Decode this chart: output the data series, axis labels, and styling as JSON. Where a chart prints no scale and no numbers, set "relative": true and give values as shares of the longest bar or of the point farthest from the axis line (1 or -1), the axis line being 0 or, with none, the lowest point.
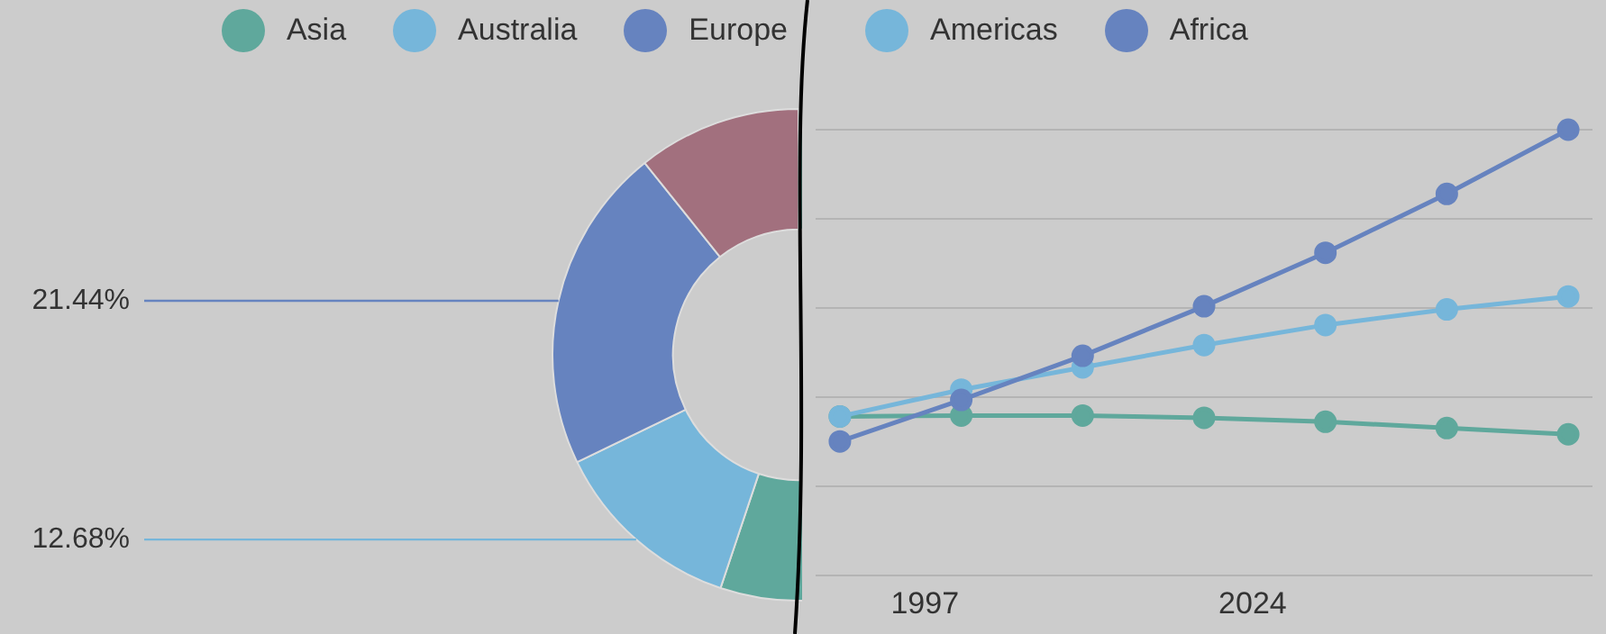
{
  "chart_data": [
    {
      "type": "donut",
      "categories": [
        "Asia",
        "Australia",
        "Europe",
        null
      ],
      "values": [
        55.13,
        12.68,
        21.44,
        10.75
      ],
      "colors": [
        "#5fa89c",
        "#76b6da",
        "#6683bf",
        "#a2707e"
      ],
      "value_labels": [
        null,
        "12.68%",
        "21.44%",
        null
      ],
      "legend": "top"
    },
    {
      "type": "line",
      "x": [
        1990,
        2000,
        2010,
        2020,
        2030,
        2040,
        2050
      ],
      "xlim": [
        1988,
        2052
      ],
      "xticks": [
        1997,
        2024
      ],
      "relative": true,
      "grid": "y",
      "marker": "circle",
      "legend": "top",
      "series": [
        {
          "color": "#5fa89c",
          "values": [
            0.357,
            0.359,
            0.359,
            0.354,
            0.345,
            0.331,
            0.317
          ]
        },
        {
          "name": "Americas",
          "color": "#76b6da",
          "values": [
            0.357,
            0.417,
            0.467,
            0.517,
            0.562,
            0.597,
            0.626
          ]
        },
        {
          "name": "Africa",
          "color": "#6683bf",
          "values": [
            0.301,
            0.394,
            0.493,
            0.604,
            0.724,
            0.856,
            1
          ]
        }
      ]
    }
  ]
}
